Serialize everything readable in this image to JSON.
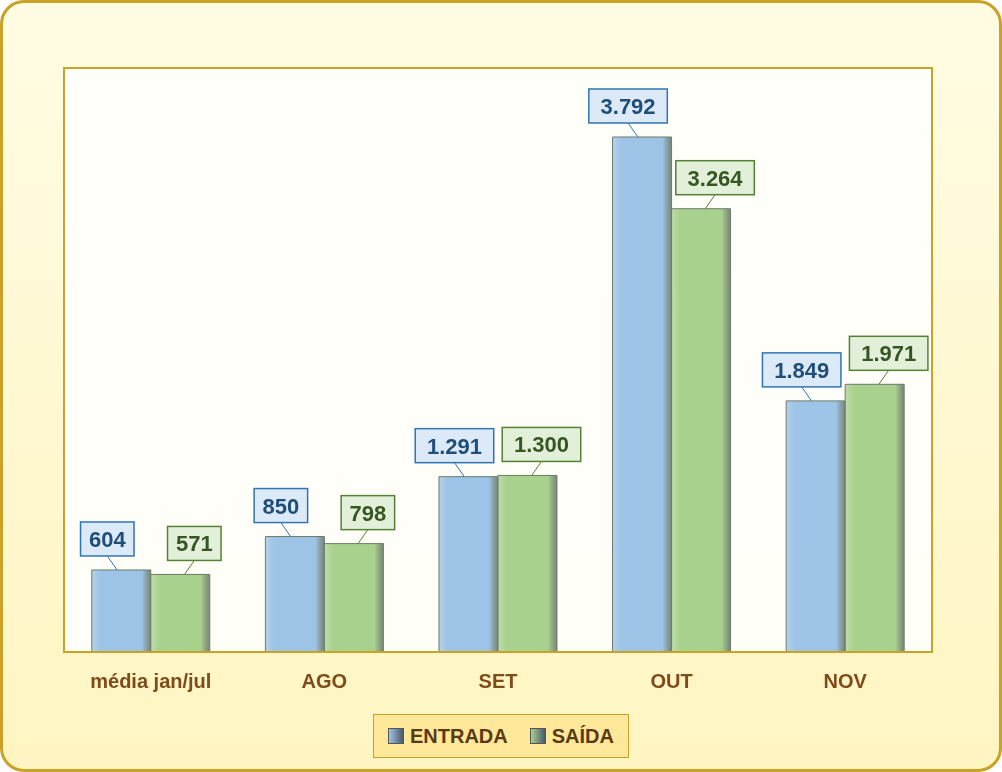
{
  "chart_data": {
    "type": "bar",
    "categories": [
      "média jan/jul",
      "AGO",
      "SET",
      "OUT",
      "NOV"
    ],
    "series": [
      {
        "name": "ENTRADA",
        "color": "#9DC3E6",
        "values": [
          604,
          850,
          1291,
          3792,
          1849
        ],
        "value_labels": [
          "604",
          "850",
          "1.291",
          "3.792",
          "1.849"
        ]
      },
      {
        "name": "SAÍDA",
        "color": "#A9D18E",
        "values": [
          571,
          798,
          1300,
          3264,
          1971
        ],
        "value_labels": [
          "571",
          "798",
          "1.300",
          "3.264",
          "1.971"
        ]
      }
    ],
    "ylim": [
      0,
      4300
    ],
    "yticks": [],
    "tick_labels": "x",
    "data_labels": true,
    "legend": "bottom"
  }
}
